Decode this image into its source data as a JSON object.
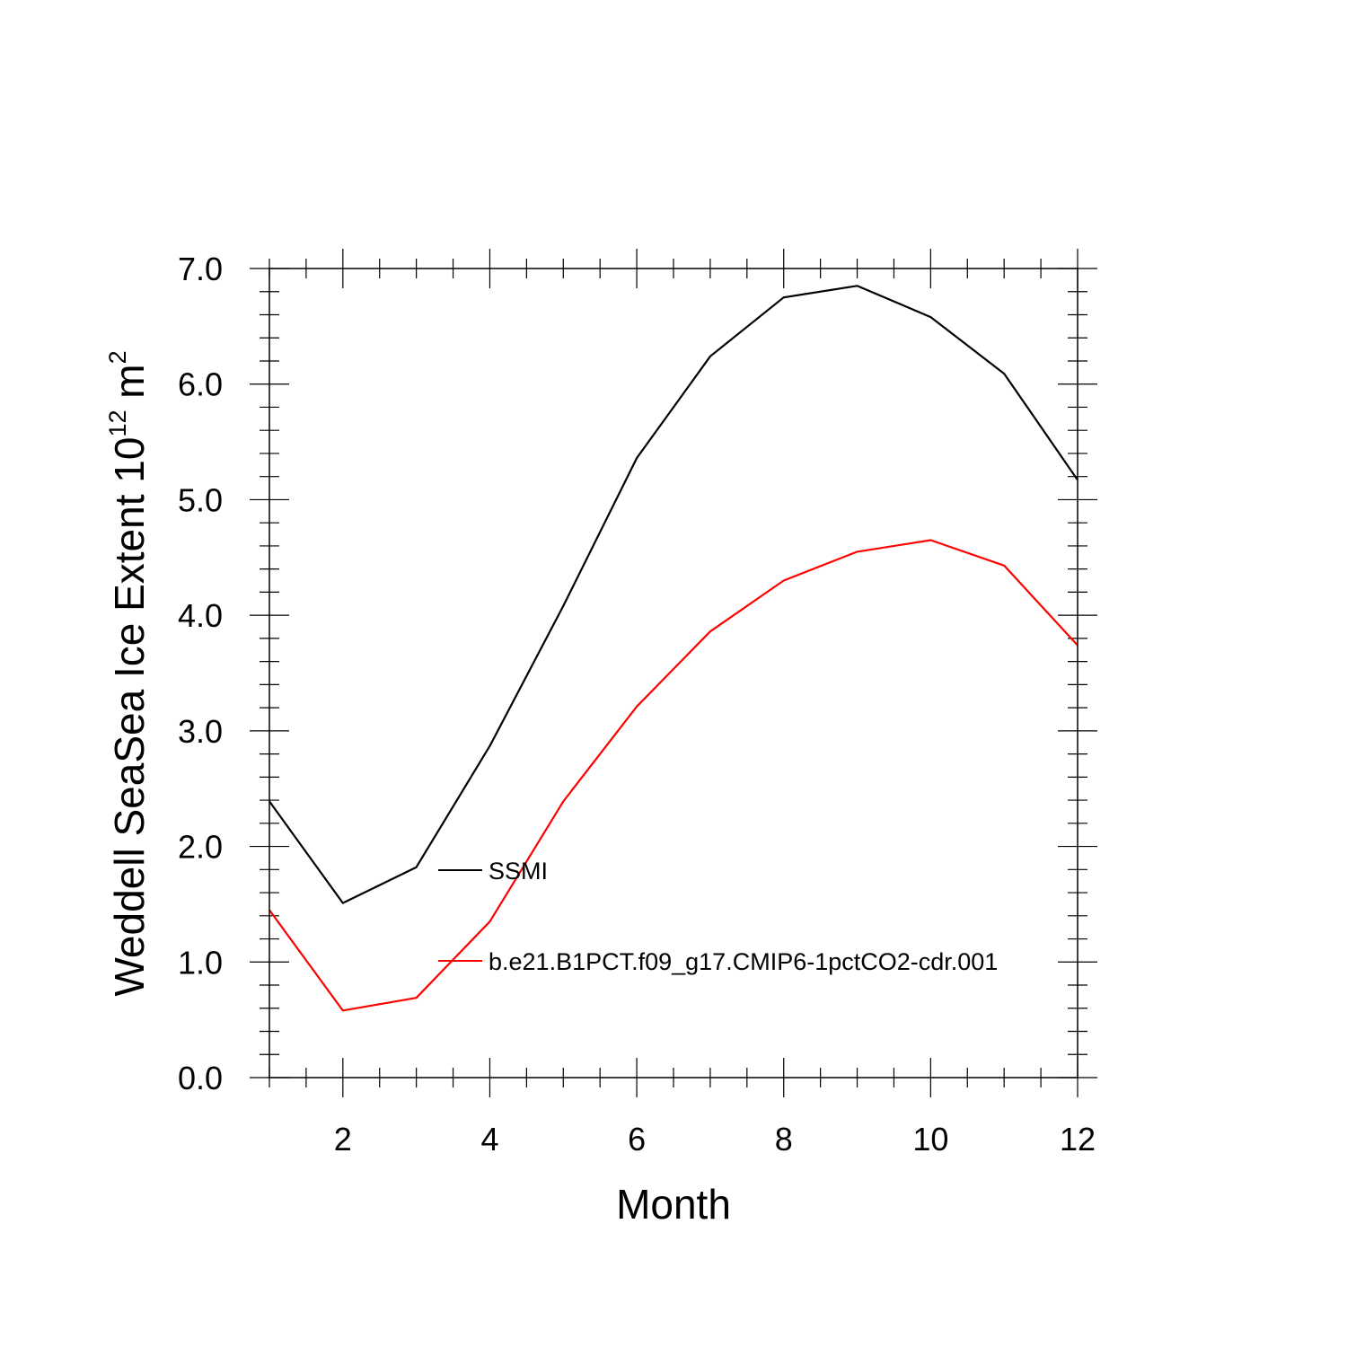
{
  "chart_data": {
    "type": "line",
    "xlabel": "Month",
    "ylabel": {
      "prefix": "Weddell SeaSea Ice Extent 10",
      "exponent": "12",
      "unit": " m",
      "unit_exponent": "2"
    },
    "xlim": [
      1,
      12
    ],
    "ylim": [
      0,
      7
    ],
    "x_ticks": [
      2,
      4,
      6,
      8,
      10,
      12
    ],
    "y_ticks": [
      0.0,
      1.0,
      2.0,
      3.0,
      4.0,
      5.0,
      6.0,
      7.0
    ],
    "y_tick_labels": [
      "0.0",
      "1.0",
      "2.0",
      "3.0",
      "4.0",
      "5.0",
      "6.0",
      "7.0"
    ],
    "grid": false,
    "legend_position": "center-left inside",
    "x": [
      1,
      2,
      3,
      4,
      5,
      6,
      7,
      8,
      9,
      10,
      11,
      12
    ],
    "series": [
      {
        "name": "SSMI",
        "color": "#000000",
        "values": [
          2.39,
          1.51,
          1.82,
          2.87,
          4.08,
          5.36,
          6.24,
          6.75,
          6.85,
          6.58,
          6.09,
          5.17
        ]
      },
      {
        "name": "b.e21.B1PCT.f09_g17.CMIP6-1pctCO2-cdr.001",
        "color": "#ff0000",
        "values": [
          1.45,
          0.58,
          0.69,
          1.35,
          2.39,
          3.21,
          3.86,
          4.3,
          4.55,
          4.65,
          4.43,
          3.74
        ]
      }
    ]
  }
}
